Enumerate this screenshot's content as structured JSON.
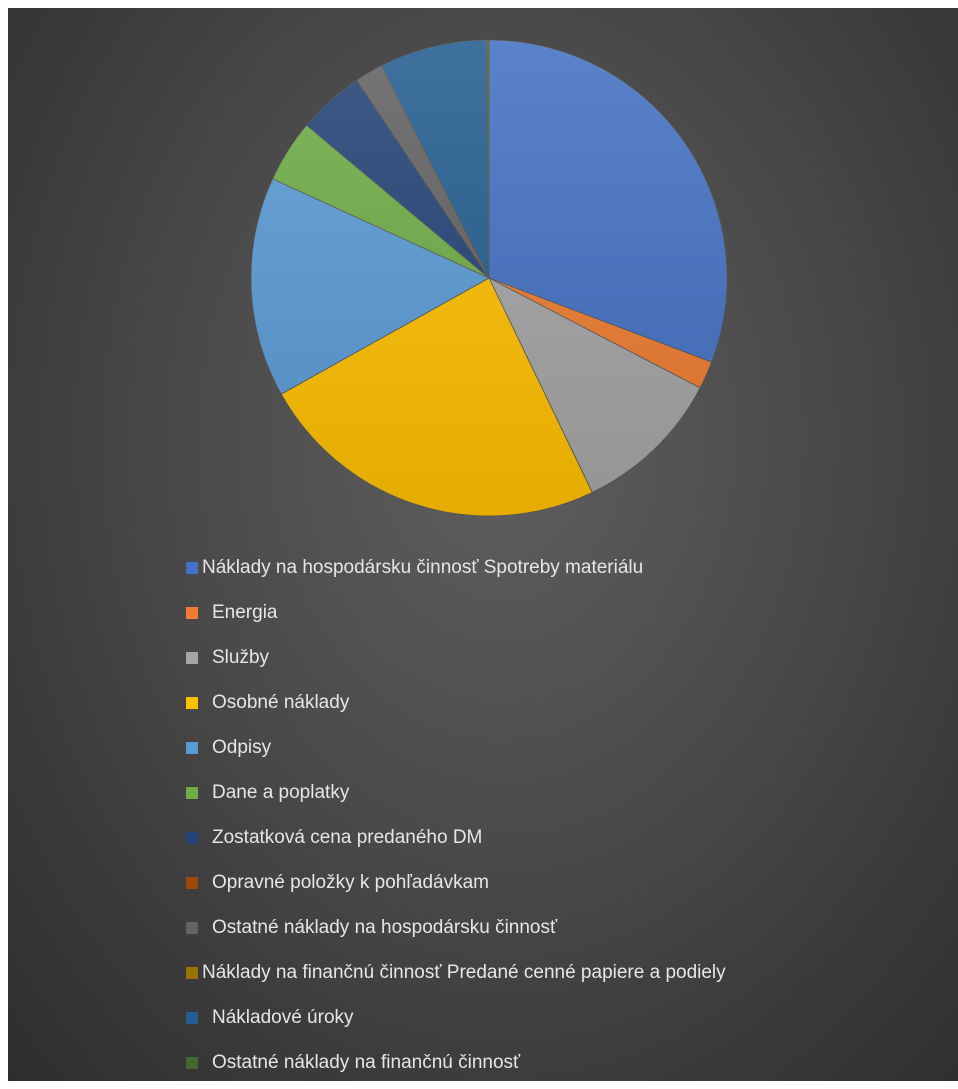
{
  "chart_data": {
    "type": "pie",
    "title": "",
    "legend_position": "bottom",
    "start_angle_deg": 0,
    "direction": "clockwise",
    "slices": [
      {
        "label": "Náklady na hospodársku činnosť Spotreby materiálu",
        "value": 32.5,
        "color": "#4472c4"
      },
      {
        "label": "Energia",
        "value": 2.0,
        "color": "#ed7d31"
      },
      {
        "label": "Služby",
        "value": 10.8,
        "color": "#a5a5a5"
      },
      {
        "label": "Osobné náklady",
        "value": 25.4,
        "color": "#ffc000"
      },
      {
        "label": "Odpisy",
        "value": 15.8,
        "color": "#5b9bd5"
      },
      {
        "label": "Dane a poplatky",
        "value": 4.5,
        "color": "#70ad47"
      },
      {
        "label": "Zostatková cena predaného DM",
        "value": 4.8,
        "color": "#264478"
      },
      {
        "label": "Opravné položky k pohľadávkam",
        "value": 0.0,
        "color": "#9e480e"
      },
      {
        "label": "Ostatné náklady na hospodársku činnosť",
        "value": 2.0,
        "color": "#636363"
      },
      {
        "label": "Náklady na finančnú činnosť Predané cenné papiere a podiely",
        "value": 0.0,
        "color": "#997300"
      },
      {
        "label": "Nákladové úroky",
        "value": 7.7,
        "color": "#255e91"
      },
      {
        "label": "Ostatné náklady na finančnú činnosť",
        "value": 0.2,
        "color": "#43682b"
      }
    ]
  },
  "legend": {
    "items": [
      {
        "label": "Náklady na hospodársku činnosť Spotreby materiálu",
        "color": "#4472c4"
      },
      {
        "label": "Energia",
        "color": "#ed7d31"
      },
      {
        "label": "Služby",
        "color": "#a5a5a5"
      },
      {
        "label": "Osobné náklady",
        "color": "#ffc000"
      },
      {
        "label": "Odpisy",
        "color": "#5b9bd5"
      },
      {
        "label": "Dane a poplatky",
        "color": "#70ad47"
      },
      {
        "label": "Zostatková cena predaného DM",
        "color": "#264478"
      },
      {
        "label": "Opravné položky k pohľadávkam",
        "color": "#9e480e"
      },
      {
        "label": "Ostatné náklady na hospodársku činnosť",
        "color": "#636363"
      },
      {
        "label": "Náklady na finančnú činnosť Predané cenné papiere a podiely",
        "color": "#997300"
      },
      {
        "label": "Nákladové úroky",
        "color": "#255e91"
      },
      {
        "label": "Ostatné náklady na finančnú činnosť",
        "color": "#43682b"
      }
    ]
  }
}
